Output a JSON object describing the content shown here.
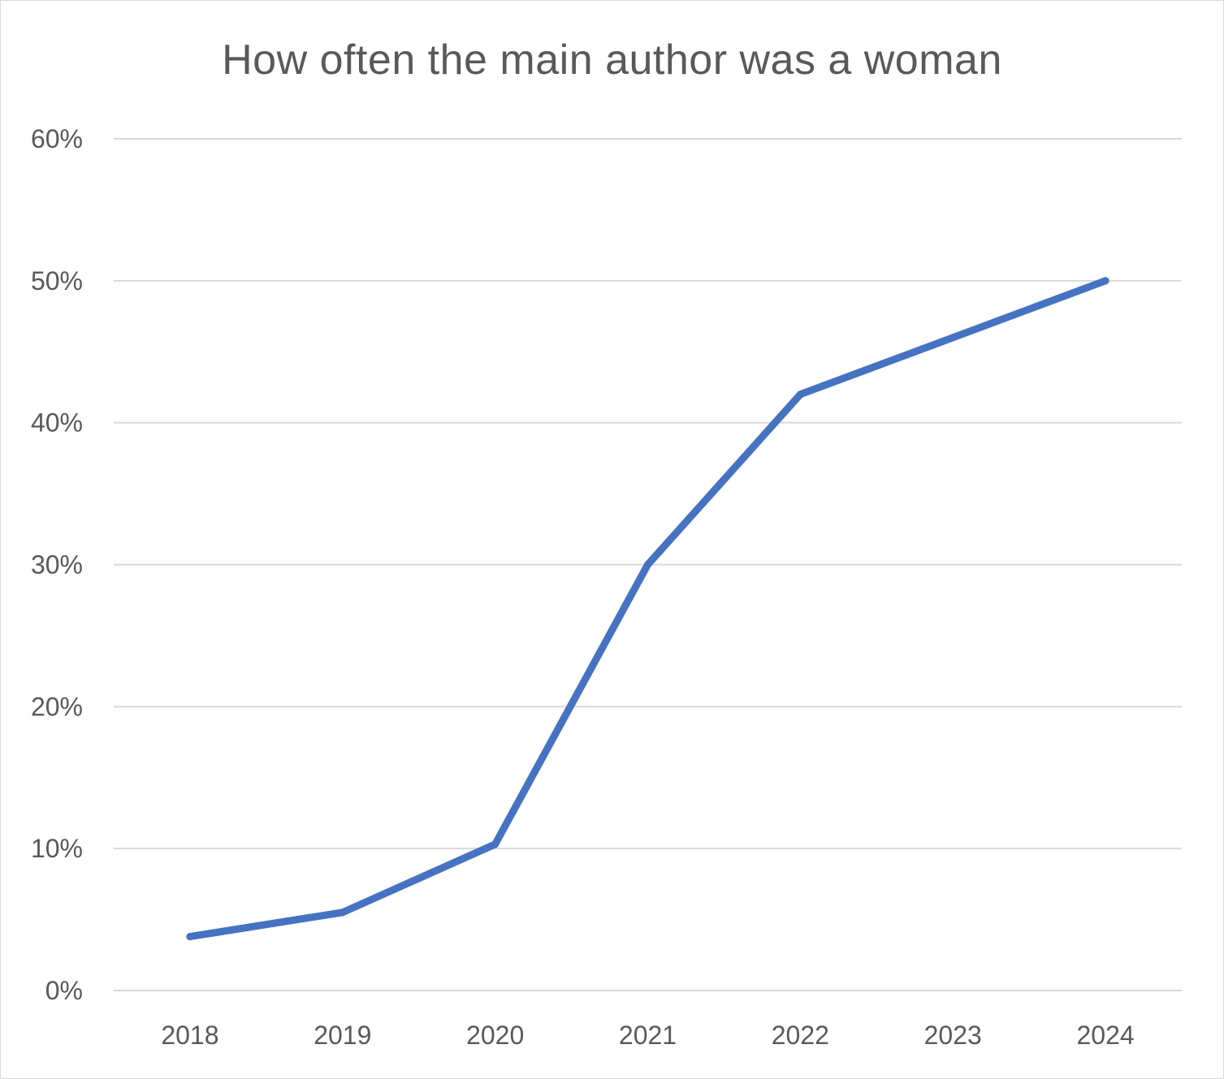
{
  "chart_data": {
    "type": "line",
    "title": "How often the main author was a woman",
    "xlabel": "",
    "ylabel": "",
    "categories": [
      "2018",
      "2019",
      "2020",
      "2021",
      "2022",
      "2023",
      "2024"
    ],
    "series": [
      {
        "values": [
          3.8,
          5.5,
          10.3,
          30.0,
          42.0,
          46.0,
          50.0
        ]
      }
    ],
    "y_ticks": [
      "0%",
      "10%",
      "20%",
      "30%",
      "40%",
      "50%",
      "60%"
    ],
    "ylim": [
      0,
      60
    ],
    "y_unit": "%",
    "grid": true,
    "legend": "none",
    "colors": {
      "line": "#4472C4",
      "grid": "#d9d9d9",
      "text": "#595959"
    }
  }
}
